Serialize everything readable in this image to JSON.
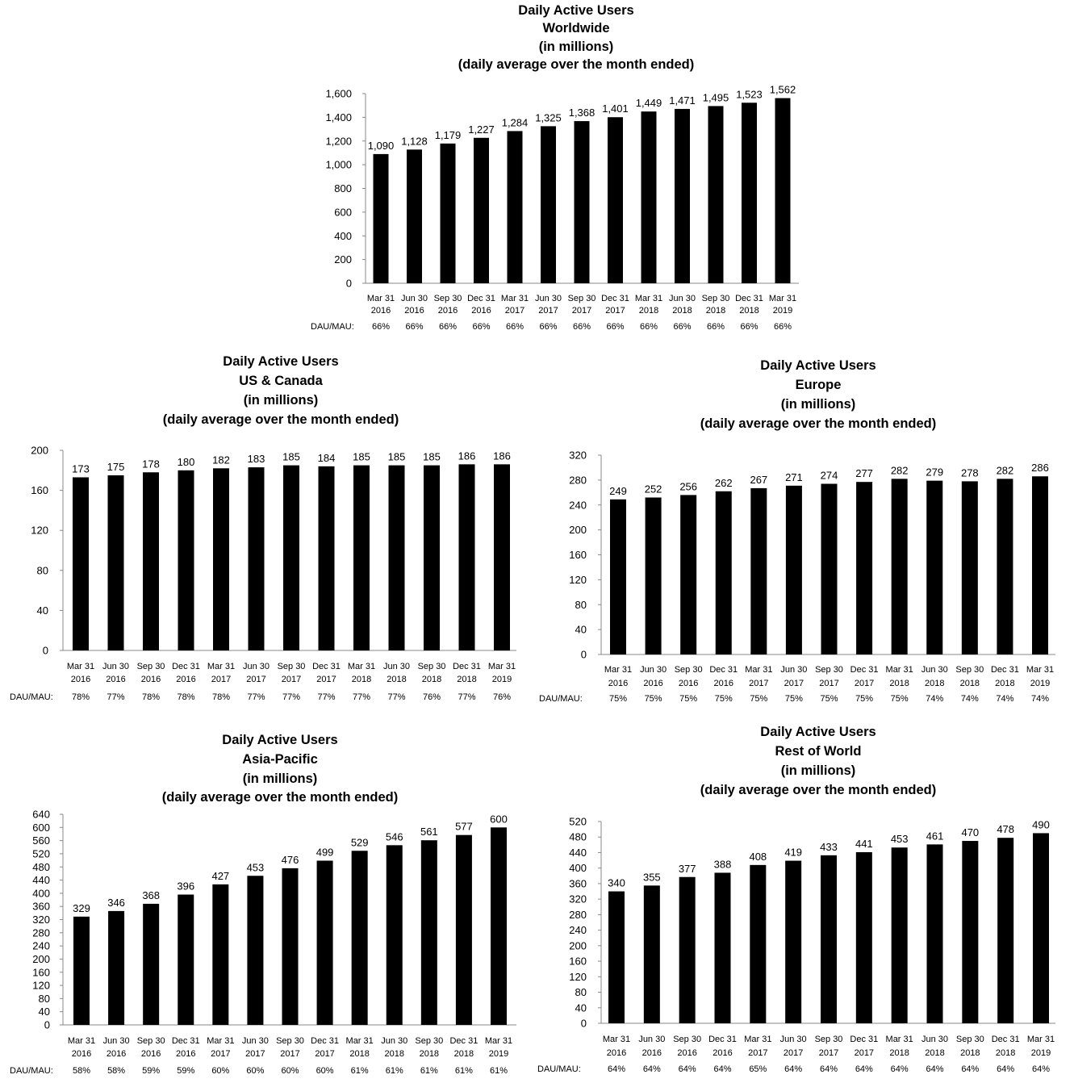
{
  "chart_data": [
    {
      "type": "bar",
      "title": [
        "Daily Active Users",
        "Worldwide",
        "(in millions)",
        "(daily average over the month ended)"
      ],
      "categories": [
        [
          "Mar 31",
          "2016"
        ],
        [
          "Jun 30",
          "2016"
        ],
        [
          "Sep 30",
          "2016"
        ],
        [
          "Dec 31",
          "2016"
        ],
        [
          "Mar 31",
          "2017"
        ],
        [
          "Jun 30",
          "2017"
        ],
        [
          "Sep 30",
          "2017"
        ],
        [
          "Dec 31",
          "2017"
        ],
        [
          "Mar 31",
          "2018"
        ],
        [
          "Jun 30",
          "2018"
        ],
        [
          "Sep 30",
          "2018"
        ],
        [
          "Dec 31",
          "2018"
        ],
        [
          "Mar 31",
          "2019"
        ]
      ],
      "values": [
        1090,
        1128,
        1179,
        1227,
        1284,
        1325,
        1368,
        1401,
        1449,
        1471,
        1495,
        1523,
        1562
      ],
      "value_labels": [
        "1,090",
        "1,128",
        "1,179",
        "1,227",
        "1,284",
        "1,325",
        "1,368",
        "1,401",
        "1,449",
        "1,471",
        "1,495",
        "1,523",
        "1,562"
      ],
      "ylim": [
        0,
        1600
      ],
      "yticks": [
        "0",
        "200",
        "400",
        "600",
        "800",
        "1,000",
        "1,200",
        "1,400",
        "1,600"
      ],
      "dau_mau_label": "DAU/MAU:",
      "dau_mau": [
        "66%",
        "66%",
        "66%",
        "66%",
        "66%",
        "66%",
        "66%",
        "66%",
        "66%",
        "66%",
        "66%",
        "66%",
        "66%"
      ],
      "bar_color": "#000000",
      "grid": false
    },
    {
      "type": "bar",
      "title": [
        "Daily Active Users",
        "US & Canada",
        "(in millions)",
        "(daily average over the month ended)"
      ],
      "categories": [
        [
          "Mar 31",
          "2016"
        ],
        [
          "Jun 30",
          "2016"
        ],
        [
          "Sep 30",
          "2016"
        ],
        [
          "Dec 31",
          "2016"
        ],
        [
          "Mar 31",
          "2017"
        ],
        [
          "Jun 30",
          "2017"
        ],
        [
          "Sep 30",
          "2017"
        ],
        [
          "Dec 31",
          "2017"
        ],
        [
          "Mar 31",
          "2018"
        ],
        [
          "Jun 30",
          "2018"
        ],
        [
          "Sep 30",
          "2018"
        ],
        [
          "Dec 31",
          "2018"
        ],
        [
          "Mar 31",
          "2019"
        ]
      ],
      "values": [
        173,
        175,
        178,
        180,
        182,
        183,
        185,
        184,
        185,
        185,
        185,
        186,
        186
      ],
      "value_labels": [
        "173",
        "175",
        "178",
        "180",
        "182",
        "183",
        "185",
        "184",
        "185",
        "185",
        "185",
        "186",
        "186"
      ],
      "ylim": [
        0,
        200
      ],
      "yticks": [
        "0",
        "40",
        "80",
        "120",
        "160",
        "200"
      ],
      "dau_mau_label": "DAU/MAU:",
      "dau_mau": [
        "78%",
        "77%",
        "78%",
        "78%",
        "78%",
        "77%",
        "77%",
        "77%",
        "77%",
        "77%",
        "76%",
        "77%",
        "76%"
      ],
      "bar_color": "#000000",
      "grid": false
    },
    {
      "type": "bar",
      "title": [
        "Daily Active Users",
        "Europe",
        "(in millions)",
        "(daily average over the month ended)"
      ],
      "categories": [
        [
          "Mar 31",
          "2016"
        ],
        [
          "Jun 30",
          "2016"
        ],
        [
          "Sep 30",
          "2016"
        ],
        [
          "Dec 31",
          "2016"
        ],
        [
          "Mar 31",
          "2017"
        ],
        [
          "Jun 30",
          "2017"
        ],
        [
          "Sep 30",
          "2017"
        ],
        [
          "Dec 31",
          "2017"
        ],
        [
          "Mar 31",
          "2018"
        ],
        [
          "Jun 30",
          "2018"
        ],
        [
          "Sep 30",
          "2018"
        ],
        [
          "Dec 31",
          "2018"
        ],
        [
          "Mar 31",
          "2019"
        ]
      ],
      "values": [
        249,
        252,
        256,
        262,
        267,
        271,
        274,
        277,
        282,
        279,
        278,
        282,
        286
      ],
      "value_labels": [
        "249",
        "252",
        "256",
        "262",
        "267",
        "271",
        "274",
        "277",
        "282",
        "279",
        "278",
        "282",
        "286"
      ],
      "ylim": [
        0,
        320
      ],
      "yticks": [
        "0",
        "40",
        "80",
        "120",
        "160",
        "200",
        "240",
        "280",
        "320"
      ],
      "dau_mau_label": "DAU/MAU:",
      "dau_mau": [
        "75%",
        "75%",
        "75%",
        "75%",
        "75%",
        "75%",
        "75%",
        "75%",
        "75%",
        "74%",
        "74%",
        "74%",
        "74%"
      ],
      "bar_color": "#000000",
      "grid": false
    },
    {
      "type": "bar",
      "title": [
        "Daily Active Users",
        "Asia-Pacific",
        "(in millions)",
        "(daily average over the month ended)"
      ],
      "categories": [
        [
          "Mar 31",
          "2016"
        ],
        [
          "Jun 30",
          "2016"
        ],
        [
          "Sep 30",
          "2016"
        ],
        [
          "Dec 31",
          "2016"
        ],
        [
          "Mar 31",
          "2017"
        ],
        [
          "Jun 30",
          "2017"
        ],
        [
          "Sep 30",
          "2017"
        ],
        [
          "Dec 31",
          "2017"
        ],
        [
          "Mar 31",
          "2018"
        ],
        [
          "Jun 30",
          "2018"
        ],
        [
          "Sep 30",
          "2018"
        ],
        [
          "Dec 31",
          "2018"
        ],
        [
          "Mar 31",
          "2019"
        ]
      ],
      "values": [
        329,
        346,
        368,
        396,
        427,
        453,
        476,
        499,
        529,
        546,
        561,
        577,
        600
      ],
      "value_labels": [
        "329",
        "346",
        "368",
        "396",
        "427",
        "453",
        "476",
        "499",
        "529",
        "546",
        "561",
        "577",
        "600"
      ],
      "ylim": [
        0,
        640
      ],
      "yticks": [
        "0",
        "40",
        "80",
        "120",
        "160",
        "200",
        "240",
        "280",
        "320",
        "360",
        "400",
        "440",
        "480",
        "520",
        "560",
        "600",
        "640"
      ],
      "dau_mau_label": "DAU/MAU:",
      "dau_mau": [
        "58%",
        "58%",
        "59%",
        "59%",
        "60%",
        "60%",
        "60%",
        "60%",
        "61%",
        "61%",
        "61%",
        "61%",
        "61%"
      ],
      "bar_color": "#000000",
      "grid": false
    },
    {
      "type": "bar",
      "title": [
        "Daily Active Users",
        "Rest of World",
        "(in millions)",
        "(daily average over the month ended)"
      ],
      "categories": [
        [
          "Mar 31",
          "2016"
        ],
        [
          "Jun 30",
          "2016"
        ],
        [
          "Sep 30",
          "2016"
        ],
        [
          "Dec 31",
          "2016"
        ],
        [
          "Mar 31",
          "2017"
        ],
        [
          "Jun 30",
          "2017"
        ],
        [
          "Sep 30",
          "2017"
        ],
        [
          "Dec 31",
          "2017"
        ],
        [
          "Mar 31",
          "2018"
        ],
        [
          "Jun 30",
          "2018"
        ],
        [
          "Sep 30",
          "2018"
        ],
        [
          "Dec 31",
          "2018"
        ],
        [
          "Mar 31",
          "2019"
        ]
      ],
      "values": [
        340,
        355,
        377,
        388,
        408,
        419,
        433,
        441,
        453,
        461,
        470,
        478,
        490
      ],
      "value_labels": [
        "340",
        "355",
        "377",
        "388",
        "408",
        "419",
        "433",
        "441",
        "453",
        "461",
        "470",
        "478",
        "490"
      ],
      "ylim": [
        0,
        520
      ],
      "yticks": [
        "0",
        "40",
        "80",
        "120",
        "160",
        "200",
        "240",
        "280",
        "320",
        "360",
        "400",
        "440",
        "480",
        "520"
      ],
      "dau_mau_label": "DAU/MAU:",
      "dau_mau": [
        "64%",
        "64%",
        "64%",
        "64%",
        "65%",
        "64%",
        "64%",
        "64%",
        "64%",
        "64%",
        "64%",
        "64%",
        "64%"
      ],
      "bar_color": "#000000",
      "grid": false
    }
  ]
}
